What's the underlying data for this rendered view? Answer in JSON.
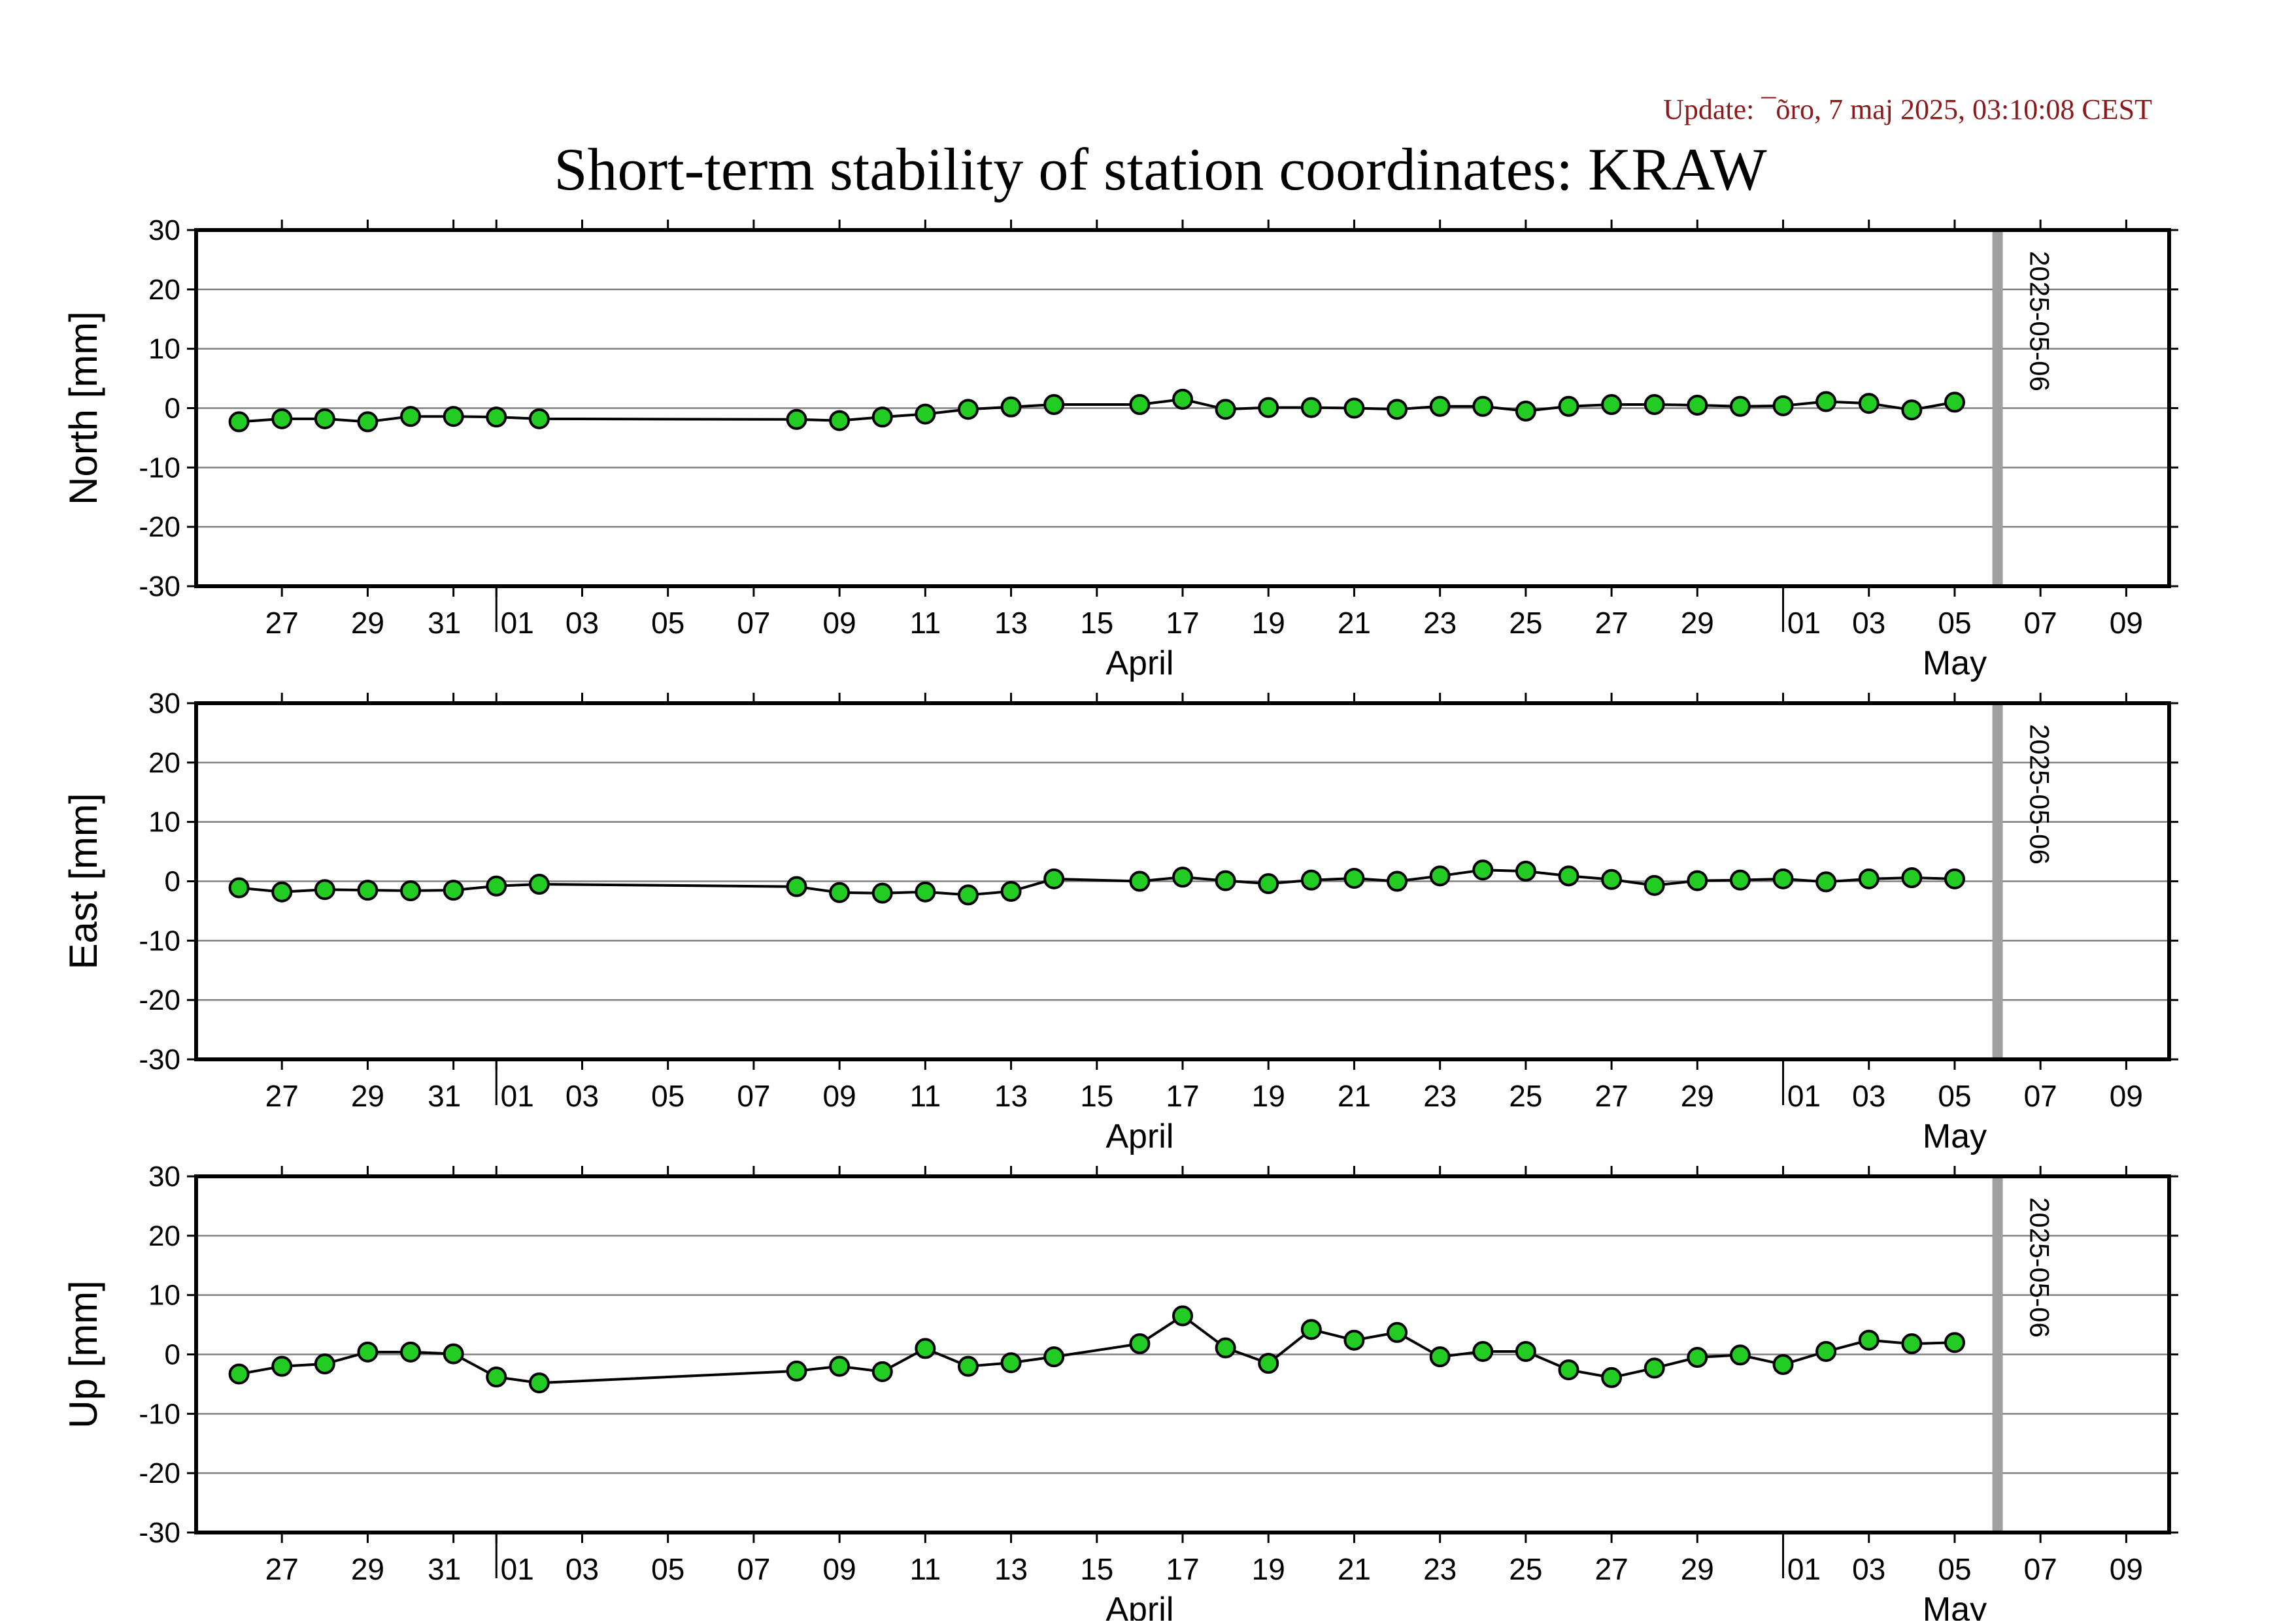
{
  "update_text": "Update: ¯õro, 7 maj 2025, 03:10:08 CEST",
  "colors": {
    "update_text": "#8b1a1a",
    "marker_fill": "#22cc22",
    "marker_stroke": "#000000",
    "series_line": "#000000",
    "gridline": "#808080",
    "date_marker": "#a0a0a0",
    "frame": "#000000"
  },
  "chart_data": {
    "type": "line",
    "title": "Short-term stability of station coordinates: KRAW",
    "x_type": "date",
    "xlim": [
      "2025-03-25",
      "2025-05-10"
    ],
    "x_tick_labels": [
      {
        "date": "2025-03-27",
        "label": "27"
      },
      {
        "date": "2025-03-29",
        "label": "29"
      },
      {
        "date": "2025-03-31",
        "label": "31"
      },
      {
        "date": "2025-04-01",
        "label": "01"
      },
      {
        "date": "2025-04-03",
        "label": "03"
      },
      {
        "date": "2025-04-05",
        "label": "05"
      },
      {
        "date": "2025-04-07",
        "label": "07"
      },
      {
        "date": "2025-04-09",
        "label": "09"
      },
      {
        "date": "2025-04-11",
        "label": "11"
      },
      {
        "date": "2025-04-13",
        "label": "13"
      },
      {
        "date": "2025-04-15",
        "label": "15"
      },
      {
        "date": "2025-04-17",
        "label": "17"
      },
      {
        "date": "2025-04-19",
        "label": "19"
      },
      {
        "date": "2025-04-21",
        "label": "21"
      },
      {
        "date": "2025-04-23",
        "label": "23"
      },
      {
        "date": "2025-04-25",
        "label": "25"
      },
      {
        "date": "2025-04-27",
        "label": "27"
      },
      {
        "date": "2025-04-29",
        "label": "29"
      },
      {
        "date": "2025-05-01",
        "label": "01"
      },
      {
        "date": "2025-05-03",
        "label": "03"
      },
      {
        "date": "2025-05-05",
        "label": "05"
      },
      {
        "date": "2025-05-07",
        "label": "07"
      },
      {
        "date": "2025-05-09",
        "label": "09"
      }
    ],
    "month_labels": [
      {
        "date": "2025-04-16",
        "label": "April"
      },
      {
        "date": "2025-05-05",
        "label": "May"
      }
    ],
    "month_boundaries": [
      "2025-04-01",
      "2025-05-01"
    ],
    "marker_date": "2025-05-06",
    "marker_label": "2025-05-06",
    "ylim": [
      -30,
      30
    ],
    "y_ticks": [
      -30,
      -20,
      -10,
      0,
      10,
      20,
      30
    ],
    "y_gridlines": [
      -20,
      -10,
      0,
      10,
      20
    ],
    "grid": true,
    "panels": [
      {
        "ylabel": "North [mm]",
        "points": [
          [
            "2025-03-26",
            -2.3
          ],
          [
            "2025-03-27",
            -1.8
          ],
          [
            "2025-03-28",
            -1.8
          ],
          [
            "2025-03-29",
            -2.3
          ],
          [
            "2025-03-30",
            -1.4
          ],
          [
            "2025-03-31",
            -1.4
          ],
          [
            "2025-04-01",
            -1.5
          ],
          [
            "2025-04-02",
            -1.8
          ],
          [
            "2025-04-08",
            -1.9
          ],
          [
            "2025-04-09",
            -2.1
          ],
          [
            "2025-04-10",
            -1.5
          ],
          [
            "2025-04-11",
            -1.0
          ],
          [
            "2025-04-12",
            -0.2
          ],
          [
            "2025-04-13",
            0.2
          ],
          [
            "2025-04-14",
            0.6
          ],
          [
            "2025-04-16",
            0.6
          ],
          [
            "2025-04-17",
            1.5
          ],
          [
            "2025-04-18",
            -0.2
          ],
          [
            "2025-04-19",
            0.1
          ],
          [
            "2025-04-20",
            0.1
          ],
          [
            "2025-04-21",
            0.0
          ],
          [
            "2025-04-22",
            -0.2
          ],
          [
            "2025-04-23",
            0.3
          ],
          [
            "2025-04-24",
            0.3
          ],
          [
            "2025-04-25",
            -0.5
          ],
          [
            "2025-04-26",
            0.3
          ],
          [
            "2025-04-27",
            0.6
          ],
          [
            "2025-04-28",
            0.6
          ],
          [
            "2025-04-29",
            0.5
          ],
          [
            "2025-04-30",
            0.3
          ],
          [
            "2025-05-01",
            0.4
          ],
          [
            "2025-05-02",
            1.1
          ],
          [
            "2025-05-03",
            0.8
          ],
          [
            "2025-05-04",
            -0.3
          ],
          [
            "2025-05-05",
            1.0
          ]
        ]
      },
      {
        "ylabel": "East [mm]",
        "points": [
          [
            "2025-03-26",
            -1.1
          ],
          [
            "2025-03-27",
            -1.8
          ],
          [
            "2025-03-28",
            -1.4
          ],
          [
            "2025-03-29",
            -1.5
          ],
          [
            "2025-03-30",
            -1.6
          ],
          [
            "2025-03-31",
            -1.5
          ],
          [
            "2025-04-01",
            -0.8
          ],
          [
            "2025-04-02",
            -0.5
          ],
          [
            "2025-04-08",
            -0.9
          ],
          [
            "2025-04-09",
            -1.9
          ],
          [
            "2025-04-10",
            -2.0
          ],
          [
            "2025-04-11",
            -1.8
          ],
          [
            "2025-04-12",
            -2.3
          ],
          [
            "2025-04-13",
            -1.7
          ],
          [
            "2025-04-14",
            0.4
          ],
          [
            "2025-04-16",
            0.0
          ],
          [
            "2025-04-17",
            0.7
          ],
          [
            "2025-04-18",
            0.1
          ],
          [
            "2025-04-19",
            -0.4
          ],
          [
            "2025-04-20",
            0.2
          ],
          [
            "2025-04-21",
            0.5
          ],
          [
            "2025-04-22",
            0.0
          ],
          [
            "2025-04-23",
            0.9
          ],
          [
            "2025-04-24",
            1.9
          ],
          [
            "2025-04-25",
            1.7
          ],
          [
            "2025-04-26",
            0.9
          ],
          [
            "2025-04-27",
            0.3
          ],
          [
            "2025-04-28",
            -0.7
          ],
          [
            "2025-04-29",
            0.1
          ],
          [
            "2025-04-30",
            0.2
          ],
          [
            "2025-05-01",
            0.4
          ],
          [
            "2025-05-02",
            -0.1
          ],
          [
            "2025-05-03",
            0.4
          ],
          [
            "2025-05-04",
            0.6
          ],
          [
            "2025-05-05",
            0.4
          ]
        ]
      },
      {
        "ylabel": "Up [mm]",
        "points": [
          [
            "2025-03-26",
            -3.3
          ],
          [
            "2025-03-27",
            -2.0
          ],
          [
            "2025-03-28",
            -1.6
          ],
          [
            "2025-03-29",
            0.4
          ],
          [
            "2025-03-30",
            0.4
          ],
          [
            "2025-03-31",
            0.1
          ],
          [
            "2025-04-01",
            -3.8
          ],
          [
            "2025-04-02",
            -4.8
          ],
          [
            "2025-04-08",
            -2.8
          ],
          [
            "2025-04-09",
            -2.0
          ],
          [
            "2025-04-10",
            -2.9
          ],
          [
            "2025-04-11",
            1.0
          ],
          [
            "2025-04-12",
            -2.0
          ],
          [
            "2025-04-13",
            -1.4
          ],
          [
            "2025-04-14",
            -0.4
          ],
          [
            "2025-04-16",
            1.8
          ],
          [
            "2025-04-17",
            6.5
          ],
          [
            "2025-04-18",
            1.1
          ],
          [
            "2025-04-19",
            -1.5
          ],
          [
            "2025-04-20",
            4.2
          ],
          [
            "2025-04-21",
            2.4
          ],
          [
            "2025-04-22",
            3.7
          ],
          [
            "2025-04-23",
            -0.4
          ],
          [
            "2025-04-24",
            0.5
          ],
          [
            "2025-04-25",
            0.5
          ],
          [
            "2025-04-26",
            -2.6
          ],
          [
            "2025-04-27",
            -3.9
          ],
          [
            "2025-04-28",
            -2.3
          ],
          [
            "2025-04-29",
            -0.5
          ],
          [
            "2025-04-30",
            -0.1
          ],
          [
            "2025-05-01",
            -1.7
          ],
          [
            "2025-05-02",
            0.5
          ],
          [
            "2025-05-03",
            2.4
          ],
          [
            "2025-05-04",
            1.8
          ],
          [
            "2025-05-05",
            2.0
          ]
        ]
      }
    ]
  }
}
